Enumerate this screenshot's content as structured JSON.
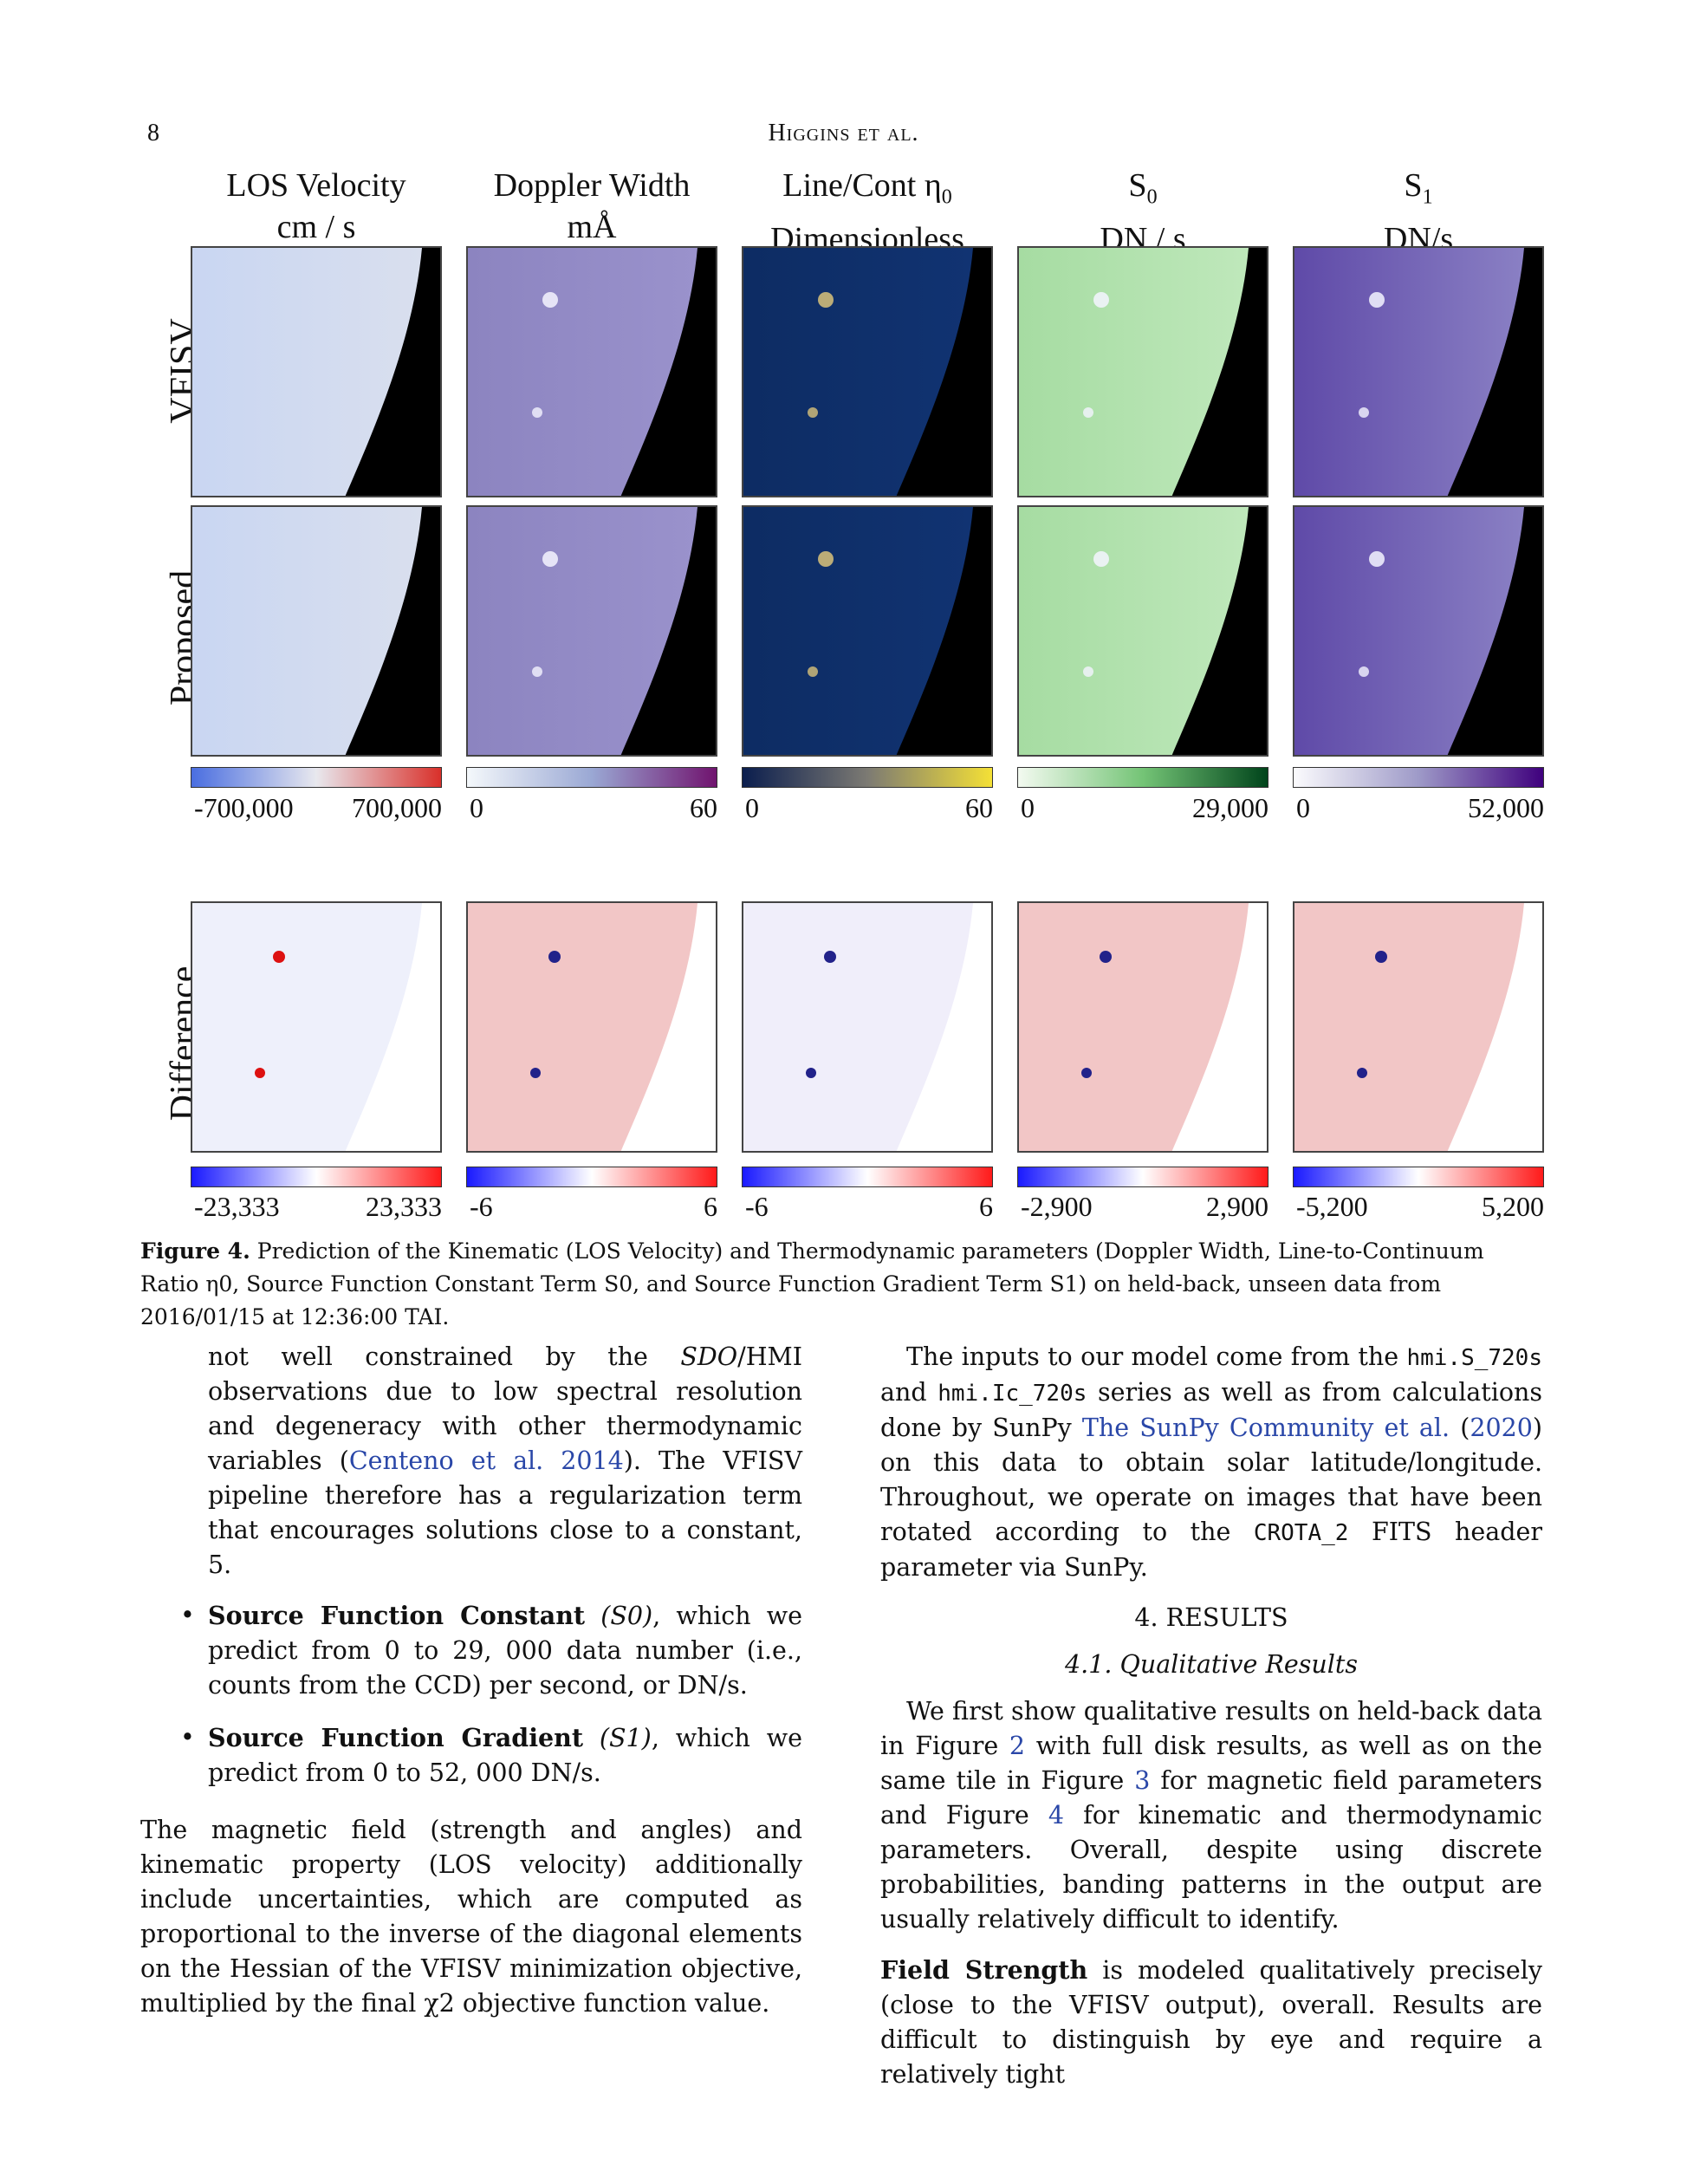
{
  "header": {
    "page_number": "8",
    "running_head": "Higgins et al."
  },
  "figure": {
    "columns": [
      {
        "title": "LOS Velocity",
        "unit": "cm / s",
        "cbar_min": "-700,000",
        "cbar_max": "700,000",
        "diff_min": "-23,333",
        "diff_max": "23,333"
      },
      {
        "title": "Doppler Width",
        "unit": "mÅ",
        "cbar_min": "0",
        "cbar_max": "60",
        "diff_min": "-6",
        "diff_max": "6"
      },
      {
        "title": "Line/Cont η",
        "title_sub": "0",
        "unit": "Dimensionless",
        "cbar_min": "0",
        "cbar_max": "60",
        "diff_min": "-6",
        "diff_max": "6"
      },
      {
        "title": "S",
        "title_sub": "0",
        "unit": "DN / s",
        "cbar_min": "0",
        "cbar_max": "29,000",
        "diff_min": "-2,900",
        "diff_max": "2,900"
      },
      {
        "title": "S",
        "title_sub": "1",
        "unit": "DN/s",
        "cbar_min": "0",
        "cbar_max": "52,000",
        "diff_min": "-5,200",
        "diff_max": "5,200"
      }
    ],
    "rows": [
      "VFISV",
      "Proposed",
      "Difference"
    ],
    "colors": {
      "los_low": "#4a6ee0",
      "los_mid": "#e8e8ee",
      "los_high": "#d9302a",
      "dw_low": "#f4f8fb",
      "dw_mid": "#9aa8d4",
      "dw_high": "#70136e",
      "eta_low": "#0b1e4e",
      "eta_mid": "#7c7a73",
      "eta_high": "#f4e036",
      "s0_low": "#f3faf0",
      "s0_mid": "#74c476",
      "s0_high": "#00441b",
      "s1_low": "#fbfbfd",
      "s1_mid": "#9e9ac8",
      "s1_high": "#3f007d",
      "diff_low": "#1a1aff",
      "diff_mid": "#ffffff",
      "diff_high": "#ff1a1a"
    }
  },
  "caption": {
    "label": "Figure 4.",
    "text": "Prediction of the Kinematic (LOS Velocity) and Thermodynamic parameters (Doppler Width, Line-to-Continuum Ratio η0, Source Function Constant Term S0, and Source Function Gradient Term S1) on held-back, unseen data from 2016/01/15 at 12:36:00 TAI."
  },
  "left_column": {
    "p1_a": "not well constrained by the ",
    "p1_sdo": "SDO",
    "p1_b": "/HMI observations due to low spectral resolution and degeneracy with other thermodynamic variables (",
    "p1_link": "Centeno et al. 2014",
    "p1_c": "). The VFISV pipeline therefore has a regularization term that encourages solutions close to a constant, 5.",
    "b1_bold": "Source Function Constant",
    "b1_sym": "(S0)",
    "b1_text": ", which we predict from 0 to 29, 000 data number (i.e., counts from the CCD) per second, or DN/s.",
    "b2_bold": "Source Function Gradient",
    "b2_sym": "(S1)",
    "b2_text": ", which we predict from 0 to 52, 000 DN/s.",
    "p2": "The magnetic field (strength and angles) and kinematic property (LOS velocity) additionally include uncertainties, which are computed as proportional to the inverse of the diagonal elements on the Hessian of the VFISV minimization objective, multiplied by the final χ2 objective function value."
  },
  "right_column": {
    "p1_a": "The inputs to our model come from the ",
    "p1_code1": "hmi.S_720s",
    "p1_b": " and ",
    "p1_code2": "hmi.Ic_720s",
    "p1_c": " series as well as from calculations done by SunPy ",
    "p1_link": "The SunPy Community et al.",
    "p1_year": "2020",
    "p1_d": " on this data to obtain solar latitude/longitude. Throughout, we operate on images that have been rotated according to the ",
    "p1_code3": "CROTA_2",
    "p1_e": " FITS header parameter via SunPy.",
    "section": "4. RESULTS",
    "subsection": "4.1. Qualitative Results",
    "p2_a": "We first show qualitative results on held-back data in Figure ",
    "p2_f2": "2",
    "p2_b": " with full disk results, as well as on the same tile in Figure ",
    "p2_f3": "3",
    "p2_c": " for magnetic field parameters and Figure ",
    "p2_f4": "4",
    "p2_d": " for kinematic and thermodynamic parameters. Overall, despite using discrete probabilities, banding patterns in the output are usually relatively difficult to identify.",
    "p3_bold": "Field Strength",
    "p3_text": " is modeled qualitatively precisely (close to the VFISV output), overall. Results are difficult to distinguish by eye and require a relatively tight"
  }
}
